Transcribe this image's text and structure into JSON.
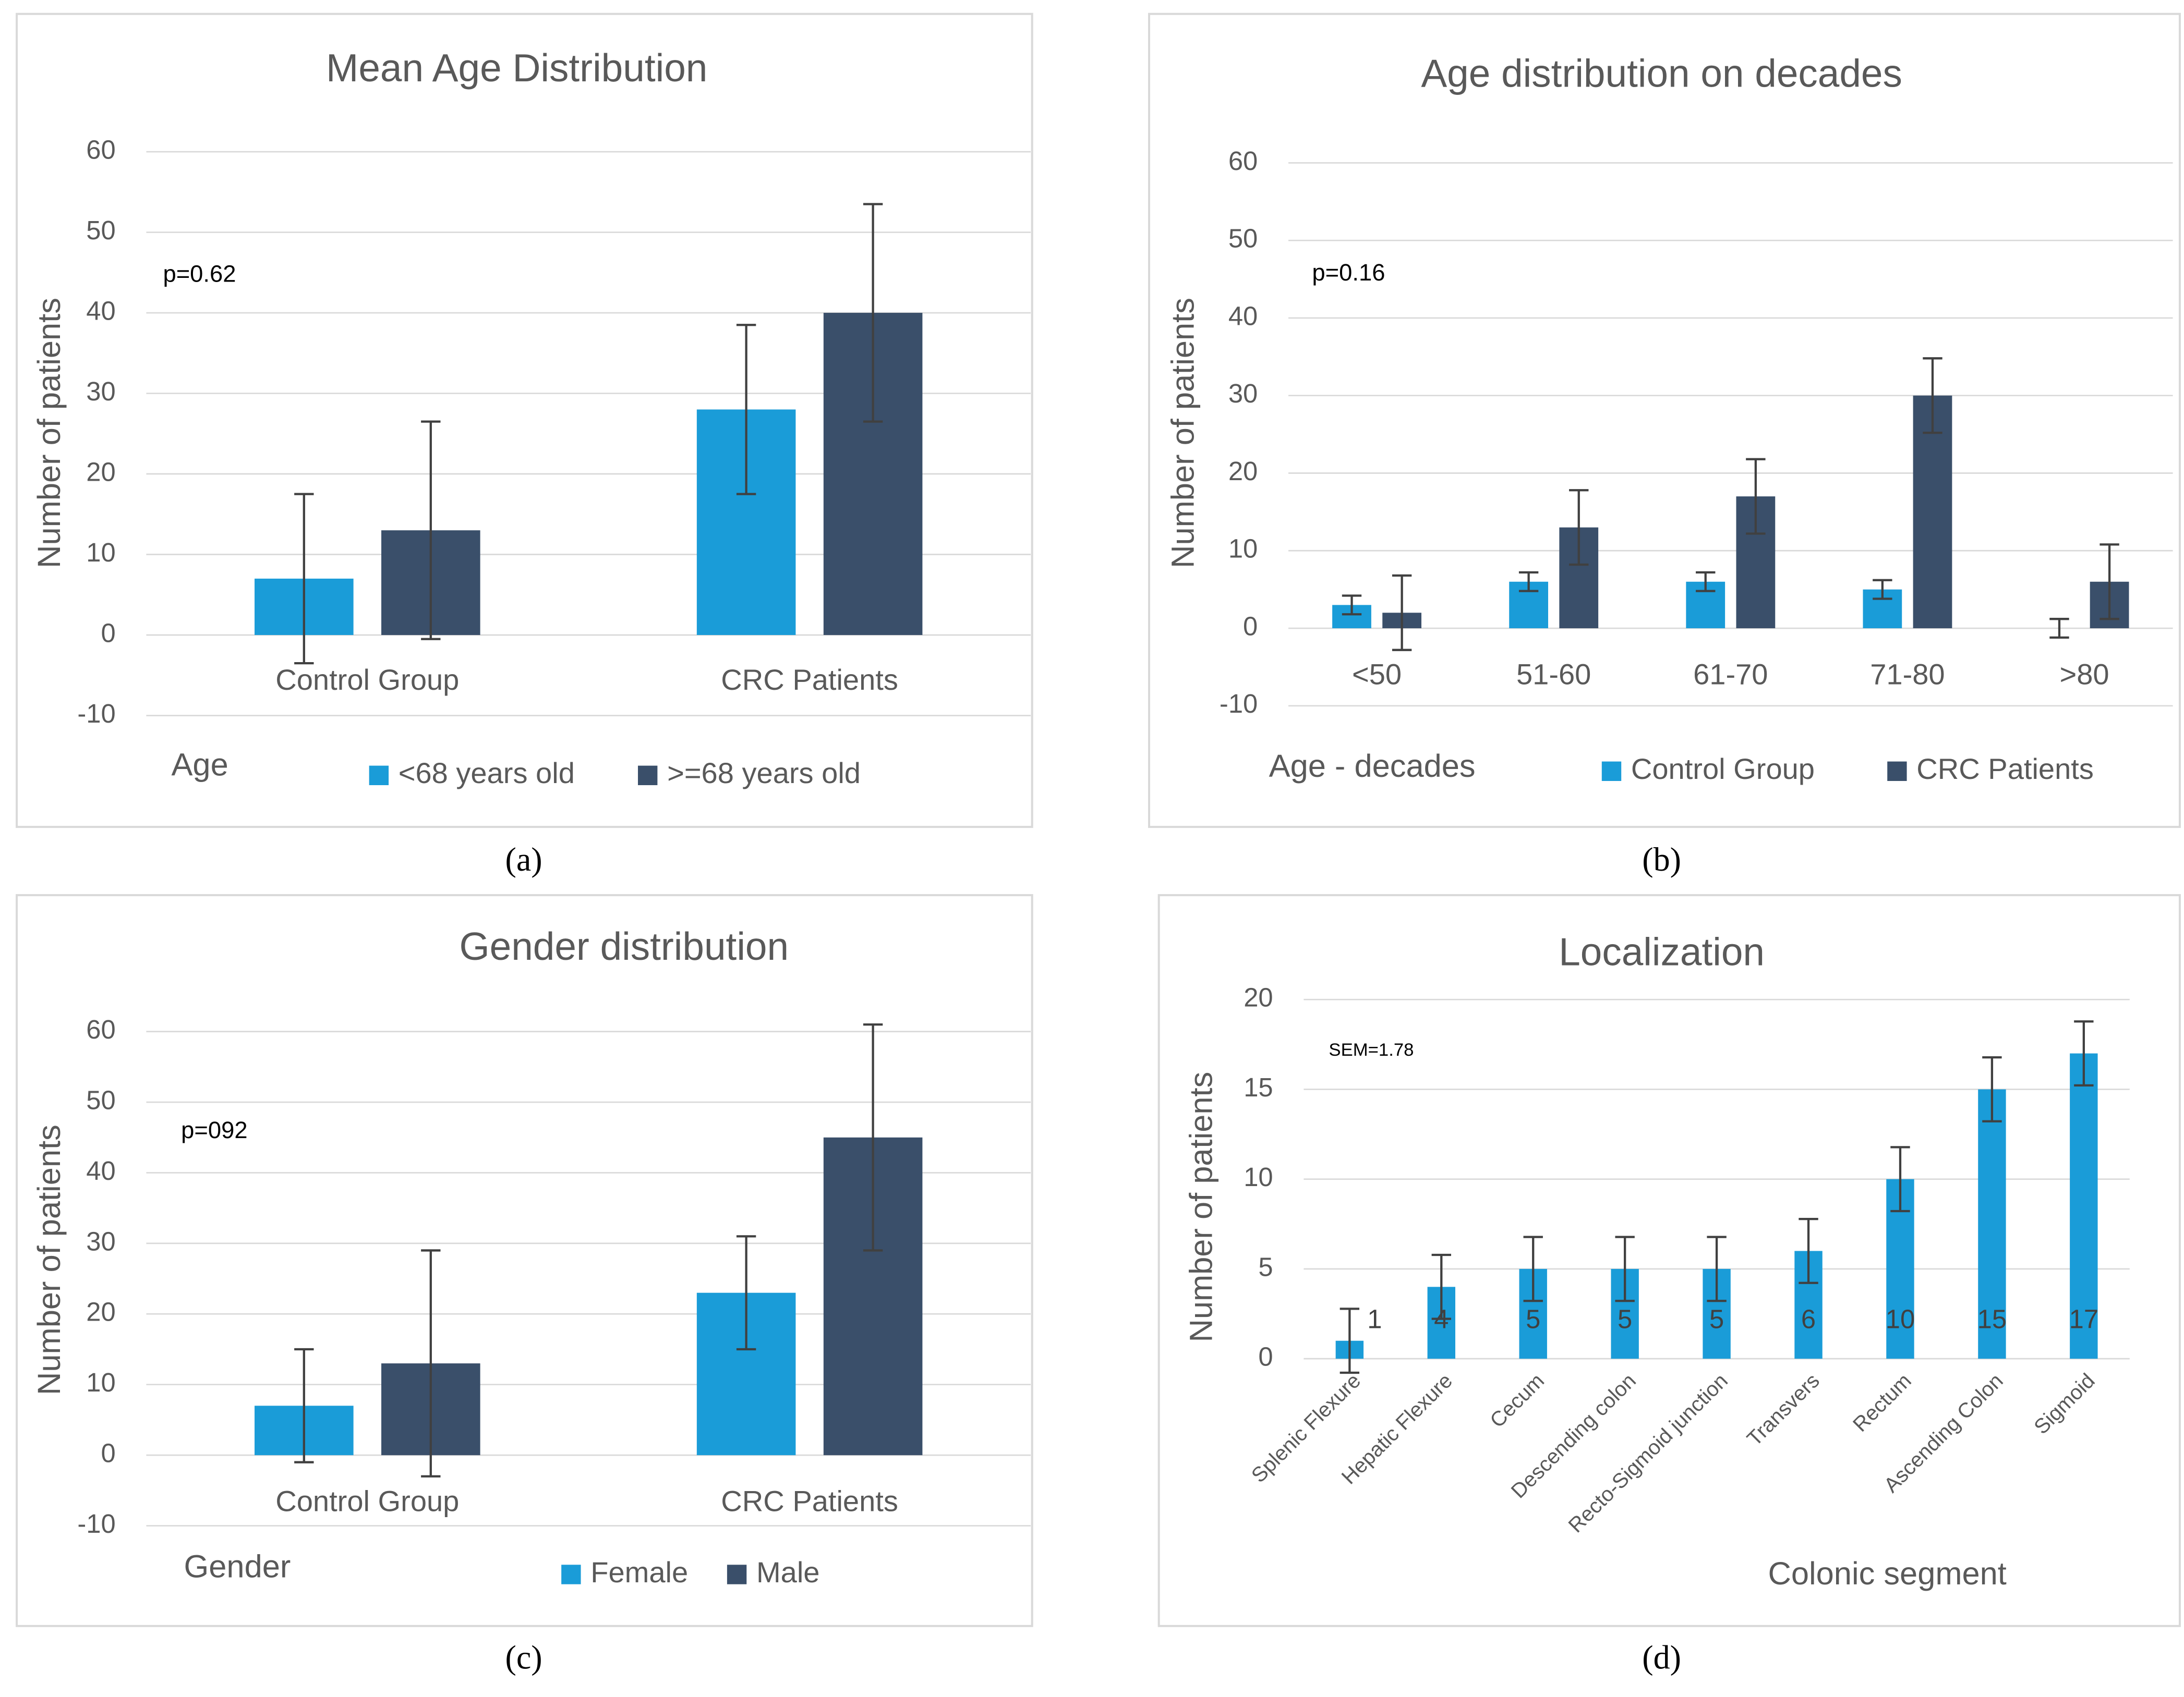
{
  "chart_data": [
    {
      "type": "bar",
      "panel_label": "(a)",
      "title": "Mean Age Distribution",
      "y_label": "Number of patients",
      "x_label": "Age",
      "annotation": "p=0.62",
      "categories": [
        "Control Group",
        "CRC Patients"
      ],
      "series": [
        {
          "name": "<68 years old",
          "color": "#1a9cd8",
          "values": [
            7,
            28
          ],
          "errors": [
            10.5,
            10.5
          ]
        },
        {
          "name": ">=68 years old",
          "color": "#3a4f6a",
          "values": [
            13,
            40
          ],
          "errors": [
            13.5,
            13.5
          ]
        }
      ],
      "ylim": [
        -10,
        60
      ],
      "yticks": [
        -10,
        0,
        10,
        20,
        30,
        40,
        50,
        60
      ],
      "grid": true,
      "legend": "bottom"
    },
    {
      "type": "bar",
      "panel_label": "(b)",
      "title": "Age distribution on decades",
      "y_label": "Number of patients",
      "x_label": "Age - decades",
      "annotation": "p=0.16",
      "categories": [
        "<50",
        "51-60",
        "61-70",
        "71-80",
        ">80"
      ],
      "series": [
        {
          "name": "Control Group",
          "color": "#1a9cd8",
          "values": [
            3,
            6,
            6,
            5,
            0
          ],
          "errors": [
            1.2,
            1.2,
            1.2,
            1.2,
            1.2
          ]
        },
        {
          "name": "CRC Patients",
          "color": "#3a4f6a",
          "values": [
            2,
            13,
            17,
            30,
            6
          ],
          "errors": [
            4.8,
            4.8,
            4.8,
            4.8,
            4.8
          ]
        }
      ],
      "ylim": [
        -10,
        60
      ],
      "yticks": [
        -10,
        0,
        10,
        20,
        30,
        40,
        50,
        60
      ],
      "grid": true,
      "legend": "bottom"
    },
    {
      "type": "bar",
      "panel_label": "(c)",
      "title": "Gender distribution",
      "y_label": "Number of patients",
      "x_label": "Gender",
      "annotation": "p=092",
      "categories": [
        "Control Group",
        "CRC Patients"
      ],
      "series": [
        {
          "name": "Female",
          "color": "#1a9cd8",
          "values": [
            7,
            23
          ],
          "errors": [
            8,
            8
          ]
        },
        {
          "name": "Male",
          "color": "#3a4f6a",
          "values": [
            13,
            45
          ],
          "errors": [
            16,
            16
          ]
        }
      ],
      "ylim": [
        -10,
        60
      ],
      "yticks": [
        -10,
        0,
        10,
        20,
        30,
        40,
        50,
        60
      ],
      "grid": true,
      "legend": "bottom"
    },
    {
      "type": "bar",
      "panel_label": "(d)",
      "title": "Localization",
      "y_label": "Number of patients",
      "x_label": "Colonic segment",
      "annotation": "SEM=1.78",
      "categories": [
        "Splenic Flexure",
        "Hepatic Flexure",
        "Cecum",
        "Descending colon",
        "Recto-Sigmoid junction",
        "Transvers",
        "Rectum",
        "Ascending Colon",
        "Sigmoid"
      ],
      "values": [
        1,
        4,
        5,
        5,
        5,
        6,
        10,
        15,
        17
      ],
      "errors": [
        1.78,
        1.78,
        1.78,
        1.78,
        1.78,
        1.78,
        1.78,
        1.78,
        1.78
      ],
      "color": "#1a9cd8",
      "data_labels": true,
      "rotated_categories": true,
      "ylim": [
        0,
        20
      ],
      "yticks": [
        0,
        5,
        10,
        15,
        20
      ],
      "grid": true
    }
  ]
}
